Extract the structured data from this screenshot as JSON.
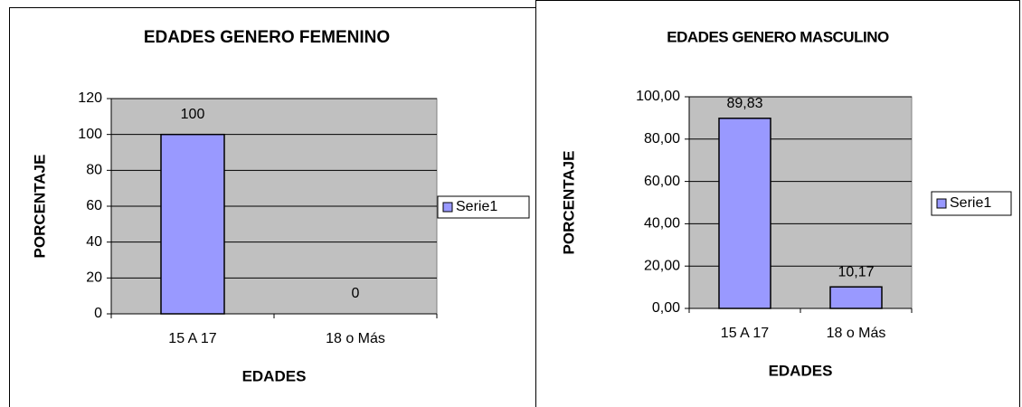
{
  "chart_data": [
    {
      "type": "bar",
      "title": "EDADES GENERO FEMENINO",
      "x_label": "EDADES",
      "y_label": "PORCENTAJE",
      "categories": [
        "15 A 17",
        "18 o Más"
      ],
      "series": [
        {
          "name": "Serie1",
          "color": "#9999ff",
          "values": [
            100,
            0
          ]
        }
      ],
      "ylim": [
        0,
        120
      ],
      "yticks": [
        0,
        20,
        40,
        60,
        80,
        100,
        120
      ],
      "grid": true,
      "legend": "right"
    },
    {
      "type": "bar",
      "title": "EDADES GENERO MASCULINO",
      "x_label": "EDADES",
      "y_label": "PORCENTAJE",
      "categories": [
        "15 A 17",
        "18 o Más"
      ],
      "series": [
        {
          "name": "Serie1",
          "color": "#9999ff",
          "values": [
            89.83,
            10.17
          ],
          "value_labels": [
            "89,83",
            "10,17"
          ]
        }
      ],
      "ylim": [
        0,
        100
      ],
      "yticks": [
        {
          "value": 0,
          "label": "0,00"
        },
        {
          "value": 20,
          "label": "20,00"
        },
        {
          "value": 40,
          "label": "40,00"
        },
        {
          "value": 60,
          "label": "60,00"
        },
        {
          "value": 80,
          "label": "80,00"
        },
        {
          "value": 100,
          "label": "100,00"
        }
      ],
      "grid": true,
      "legend": "right"
    }
  ]
}
